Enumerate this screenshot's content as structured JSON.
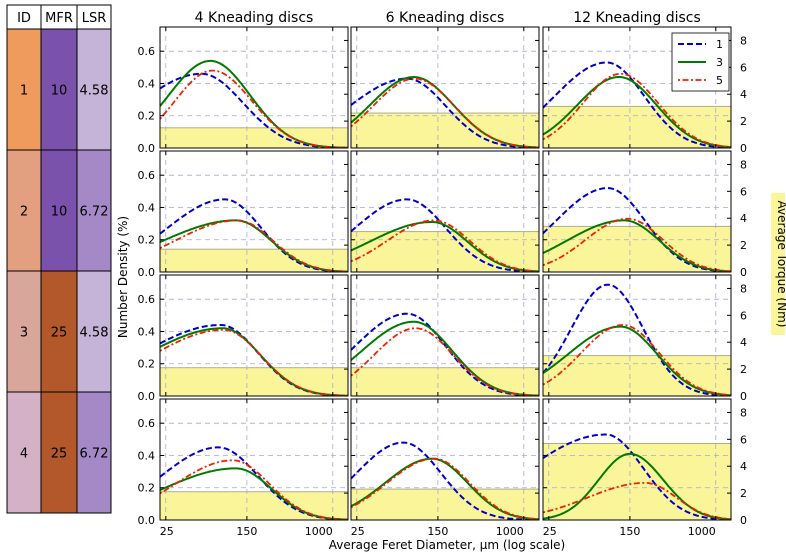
{
  "table": {
    "headers": [
      "ID",
      "MFR",
      "LSR"
    ],
    "rows": [
      {
        "id": "1",
        "mfr": "10",
        "lsr": "4.58",
        "id_color": "#ef9b5e",
        "mfr_color": "#7b52ab",
        "lsr_color": "#c5b3d8"
      },
      {
        "id": "2",
        "mfr": "10",
        "lsr": "6.72",
        "id_color": "#e2a081",
        "mfr_color": "#7b52ab",
        "lsr_color": "#a489c6"
      },
      {
        "id": "3",
        "mfr": "25",
        "lsr": "4.58",
        "id_color": "#d8a69a",
        "mfr_color": "#b2582a",
        "lsr_color": "#c5b3d8"
      },
      {
        "id": "4",
        "mfr": "25",
        "lsr": "6.72",
        "id_color": "#d4b1c7",
        "mfr_color": "#b2582a",
        "lsr_color": "#a489c6"
      }
    ]
  },
  "chart_data": {
    "type": "line",
    "column_titles": [
      "4 Kneading discs",
      "6 Kneading discs",
      "12 Kneading discs"
    ],
    "xlabel": "Average Feret Diameter, μm (log scale)",
    "ylabel": "Number Density (%)",
    "y2label": "Average Torque (Nm)",
    "x_scale": "log",
    "xlim": [
      22,
      1400
    ],
    "xticks": [
      25,
      150,
      1000
    ],
    "ylim": [
      0,
      0.75
    ],
    "yticks": [
      "0.0",
      "0.2",
      "0.4",
      "0.6"
    ],
    "y2lim": [
      0,
      9
    ],
    "y2ticks": [
      "0",
      "2",
      "4",
      "6",
      "8"
    ],
    "grid": true,
    "legend_position": "top-right",
    "series": [
      {
        "name": "1",
        "color": "#0000cc",
        "dash": "dashed"
      },
      {
        "name": "3",
        "color": "#007a00",
        "dash": "solid"
      },
      {
        "name": "5",
        "color": "#ee2200",
        "dash": "dashdot"
      }
    ],
    "colors": {
      "torque_fill": "#fbf59a",
      "torque_edge": "#9a9a7a",
      "grid": "#a8a8d8"
    },
    "panels": [
      {
        "row": 1,
        "col": 1,
        "torque": 1.5,
        "curves": [
          {
            "peak_x": 55,
            "peak_y": 0.46,
            "sl": 0.6,
            "sr": 0.4
          },
          {
            "peak_x": 67,
            "peak_y": 0.54,
            "sl": 0.4,
            "sr": 0.38
          },
          {
            "peak_x": 70,
            "peak_y": 0.48,
            "sl": 0.36,
            "sr": 0.38
          }
        ]
      },
      {
        "row": 1,
        "col": 2,
        "torque": 2.6,
        "curves": [
          {
            "peak_x": 76,
            "peak_y": 0.43,
            "sl": 0.55,
            "sr": 0.37
          },
          {
            "peak_x": 88,
            "peak_y": 0.44,
            "sl": 0.42,
            "sr": 0.38
          },
          {
            "peak_x": 90,
            "peak_y": 0.43,
            "sl": 0.4,
            "sr": 0.38
          }
        ]
      },
      {
        "row": 1,
        "col": 3,
        "torque": 3.1,
        "curves": [
          {
            "peak_x": 90,
            "peak_y": 0.53,
            "sl": 0.5,
            "sr": 0.36
          },
          {
            "peak_x": 118,
            "peak_y": 0.44,
            "sl": 0.4,
            "sr": 0.36
          },
          {
            "peak_x": 122,
            "peak_y": 0.46,
            "sl": 0.36,
            "sr": 0.36
          }
        ]
      },
      {
        "row": 2,
        "col": 1,
        "torque": 1.7,
        "curves": [
          {
            "peak_x": 92,
            "peak_y": 0.45,
            "sl": 0.55,
            "sr": 0.35
          },
          {
            "peak_x": 118,
            "peak_y": 0.32,
            "sl": 0.7,
            "sr": 0.34
          },
          {
            "peak_x": 122,
            "peak_y": 0.32,
            "sl": 0.6,
            "sr": 0.34
          }
        ]
      },
      {
        "row": 2,
        "col": 2,
        "torque": 3.0,
        "curves": [
          {
            "peak_x": 76,
            "peak_y": 0.45,
            "sl": 0.5,
            "sr": 0.37
          },
          {
            "peak_x": 132,
            "peak_y": 0.31,
            "sl": 0.6,
            "sr": 0.34
          },
          {
            "peak_x": 138,
            "peak_y": 0.32,
            "sl": 0.45,
            "sr": 0.34
          }
        ]
      },
      {
        "row": 2,
        "col": 3,
        "torque": 3.4,
        "curves": [
          {
            "peak_x": 92,
            "peak_y": 0.52,
            "sl": 0.5,
            "sr": 0.36
          },
          {
            "peak_x": 132,
            "peak_y": 0.32,
            "sl": 0.55,
            "sr": 0.34
          },
          {
            "peak_x": 142,
            "peak_y": 0.33,
            "sl": 0.4,
            "sr": 0.34
          }
        ]
      },
      {
        "row": 3,
        "col": 1,
        "torque": 2.1,
        "curves": [
          {
            "peak_x": 84,
            "peak_y": 0.44,
            "sl": 0.75,
            "sr": 0.36
          },
          {
            "peak_x": 88,
            "peak_y": 0.42,
            "sl": 0.75,
            "sr": 0.36
          },
          {
            "peak_x": 90,
            "peak_y": 0.41,
            "sl": 0.7,
            "sr": 0.36
          }
        ]
      },
      {
        "row": 3,
        "col": 2,
        "torque": 2.1,
        "curves": [
          {
            "peak_x": 76,
            "peak_y": 0.51,
            "sl": 0.5,
            "sr": 0.37
          },
          {
            "peak_x": 88,
            "peak_y": 0.46,
            "sl": 0.5,
            "sr": 0.37
          },
          {
            "peak_x": 92,
            "peak_y": 0.42,
            "sl": 0.4,
            "sr": 0.36
          }
        ]
      },
      {
        "row": 3,
        "col": 3,
        "torque": 3.0,
        "curves": [
          {
            "peak_x": 92,
            "peak_y": 0.69,
            "sl": 0.35,
            "sr": 0.34
          },
          {
            "peak_x": 122,
            "peak_y": 0.43,
            "sl": 0.5,
            "sr": 0.35
          },
          {
            "peak_x": 128,
            "peak_y": 0.44,
            "sl": 0.4,
            "sr": 0.35
          }
        ]
      },
      {
        "row": 4,
        "col": 1,
        "torque": 2.1,
        "curves": [
          {
            "peak_x": 80,
            "peak_y": 0.45,
            "sl": 0.55,
            "sr": 0.38
          },
          {
            "peak_x": 118,
            "peak_y": 0.32,
            "sl": 0.7,
            "sr": 0.34
          },
          {
            "peak_x": 110,
            "peak_y": 0.37,
            "sl": 0.55,
            "sr": 0.35
          }
        ]
      },
      {
        "row": 4,
        "col": 2,
        "torque": 2.3,
        "curves": [
          {
            "peak_x": 70,
            "peak_y": 0.48,
            "sl": 0.45,
            "sr": 0.36
          },
          {
            "peak_x": 132,
            "peak_y": 0.38,
            "sl": 0.45,
            "sr": 0.34
          },
          {
            "peak_x": 138,
            "peak_y": 0.38,
            "sl": 0.45,
            "sr": 0.34
          }
        ]
      },
      {
        "row": 4,
        "col": 3,
        "torque": 5.7,
        "curves": [
          {
            "peak_x": 88,
            "peak_y": 0.53,
            "sl": 0.75,
            "sr": 0.36
          },
          {
            "peak_x": 150,
            "peak_y": 0.41,
            "sl": 0.3,
            "sr": 0.32
          },
          {
            "peak_x": 210,
            "peak_y": 0.23,
            "sl": 0.55,
            "sr": 0.3
          }
        ]
      }
    ]
  }
}
